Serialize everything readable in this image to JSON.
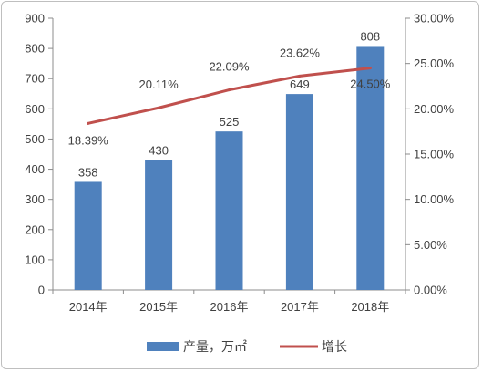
{
  "chart_data": {
    "type": "bar",
    "categories": [
      "2014年",
      "2015年",
      "2016年",
      "2017年",
      "2018年"
    ],
    "series": [
      {
        "name": "产量，万㎡",
        "type": "bar",
        "axis": "left",
        "values": [
          358,
          430,
          525,
          649,
          808
        ],
        "labels": [
          "358",
          "430",
          "525",
          "649",
          "808"
        ],
        "color": "#4f81bd"
      },
      {
        "name": "增长",
        "type": "line",
        "axis": "right",
        "values": [
          18.39,
          20.11,
          22.09,
          23.62,
          24.5
        ],
        "labels": [
          "18.39%",
          "20.11%",
          "22.09%",
          "23.62%",
          "24.50%"
        ],
        "color": "#c0504d"
      }
    ],
    "y_left": {
      "ylim": [
        0,
        900
      ],
      "ticks": [
        "0",
        "100",
        "200",
        "300",
        "400",
        "500",
        "600",
        "700",
        "800",
        "900"
      ]
    },
    "y_right": {
      "ylim": [
        0,
        30
      ],
      "ticks": [
        "0.00%",
        "5.00%",
        "10.00%",
        "15.00%",
        "20.00%",
        "25.00%",
        "30.00%"
      ]
    },
    "legend_position": "bottom",
    "grid": false
  }
}
